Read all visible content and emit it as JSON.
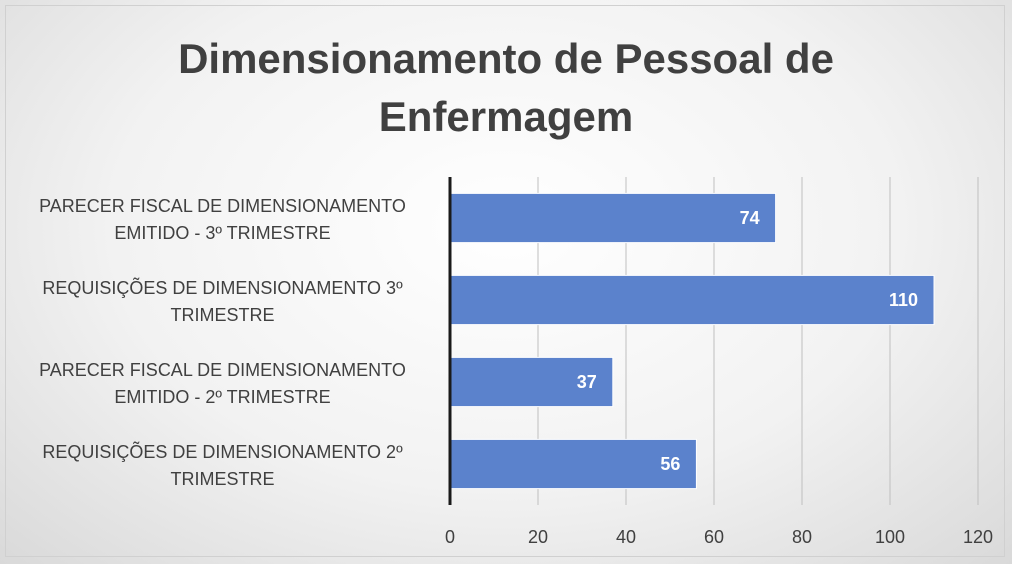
{
  "chart_data": {
    "type": "bar",
    "orientation": "horizontal",
    "title": "Dimensionamento de Pessoal de Enfermagem",
    "categories": [
      "PARECER FISCAL DE DIMENSIONAMENTO EMITIDO - 3º TRIMESTRE",
      "REQUISIÇÕES DE DIMENSIONAMENTO 3º TRIMESTRE",
      "PARECER FISCAL DE DIMENSIONAMENTO EMITIDO - 2º TRIMESTRE",
      "REQUISIÇÕES DE DIMENSIONAMENTO 2º TRIMESTRE"
    ],
    "values": [
      74,
      110,
      37,
      56
    ],
    "color": "#5b82cc",
    "xlim": [
      0,
      120
    ],
    "xticks": [
      0,
      20,
      40,
      60,
      80,
      100,
      120
    ],
    "grid": true
  }
}
